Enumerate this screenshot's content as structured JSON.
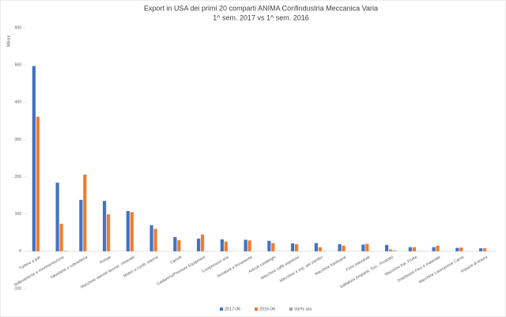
{
  "chart_data": {
    "type": "bar",
    "title": "Export in USA dei primi 20 comparti ANIMA Confindustria Meccanica Varia",
    "subtitle": "1^ sem. 2017 vs 1^ sem. 2016",
    "y_label": "Milioni",
    "categories": [
      "Turbine a gas",
      "Sollevamento e movimentazione",
      "Valvolame e rubinetteria",
      "Pompe",
      "Macchine utensili lavoraz. minerale",
      "Motori a comb. interna",
      "Carrelli",
      "Caldareria/Pressure Equipment",
      "Compressori aria",
      "Serrature e ferramenta",
      "Articoli casalinghi",
      "Macchine caffè espresso",
      "Macchine e imp. per panifici",
      "Macchine frantoiane",
      "Forni industriali",
      "Saldatura (Impianti, Torc., Prodotti)",
      "Macchine trat. Frutta",
      "Distributori Fissi e materiale",
      "Macchine Lavorazione Carne",
      "Impianti di tintura"
    ],
    "series": [
      {
        "name": "2017-06",
        "color": "#4472c4",
        "values": [
          497,
          184,
          138,
          135,
          108,
          70,
          38,
          34,
          32,
          31,
          28,
          21,
          22,
          19,
          18,
          17,
          11,
          11,
          9,
          8
        ]
      },
      {
        "name": "2016-06",
        "color": "#ed7d31",
        "values": [
          361,
          74,
          206,
          99,
          105,
          60,
          30,
          45,
          26,
          29,
          22,
          19,
          11,
          15,
          20,
          5,
          11,
          15,
          10,
          8
        ]
      },
      {
        "name": "Var% a/a",
        "color": "#a5a5a5",
        "values": [
          0.38,
          1.49,
          -0.33,
          0.36,
          0.03,
          0.17,
          0.27,
          -0.24,
          0.23,
          0.07,
          0.27,
          0.11,
          1.0,
          0.27,
          -0.1,
          2.4,
          0,
          -0.27,
          -0.1,
          0
        ]
      }
    ],
    "ylim": [
      -100,
      600
    ],
    "yticks": [
      -100,
      0,
      100,
      200,
      300,
      400,
      500,
      600
    ],
    "legend": "bottom"
  }
}
